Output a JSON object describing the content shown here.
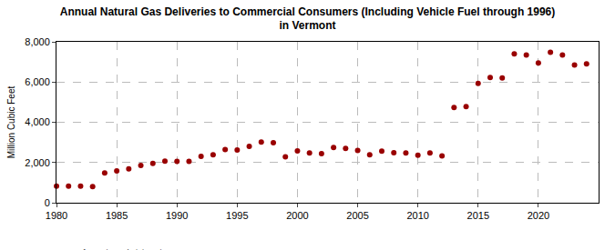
{
  "chart_data": {
    "type": "scatter",
    "title": [
      "Annual Natural Gas Deliveries to Commercial Consumers (Including Vehicle Fuel through 1996)",
      "in Vermont"
    ],
    "y_label": "Million Cubic Feet",
    "source": "Source: U.S. Energy Information Administration",
    "x": [
      1980,
      1981,
      1982,
      1983,
      1984,
      1985,
      1986,
      1987,
      1988,
      1989,
      1990,
      1991,
      1992,
      1993,
      1994,
      1995,
      1996,
      1997,
      1998,
      1999,
      2000,
      2001,
      2002,
      2003,
      2004,
      2005,
      2006,
      2007,
      2008,
      2009,
      2010,
      2011,
      2012,
      2013,
      2014,
      2015,
      2016,
      2017,
      2018,
      2019,
      2020,
      2021,
      2022,
      2023,
      2024
    ],
    "values": [
      830,
      820,
      830,
      800,
      1480,
      1580,
      1680,
      1850,
      1950,
      2070,
      2060,
      2060,
      2300,
      2380,
      2640,
      2620,
      2800,
      3020,
      2980,
      2280,
      2580,
      2480,
      2440,
      2750,
      2700,
      2600,
      2380,
      2560,
      2490,
      2480,
      2360,
      2480,
      2330,
      4740,
      4780,
      5930,
      6230,
      6200,
      7400,
      7340,
      6950,
      7480,
      7340,
      6850,
      6900
    ],
    "color": "#990000",
    "marker": "circle",
    "xlim": [
      1980,
      2025
    ],
    "xticks": [
      1980,
      1985,
      1990,
      1995,
      2000,
      2005,
      2010,
      2015,
      2020
    ],
    "ylim": [
      0,
      8000
    ],
    "yticks": [
      0,
      {
        "value": 2000,
        "label": "2,000"
      },
      {
        "value": 4000,
        "label": "4,000"
      },
      {
        "value": 6000,
        "label": "6,000"
      },
      {
        "value": 8000,
        "label": "8,000"
      }
    ],
    "grid": true
  }
}
